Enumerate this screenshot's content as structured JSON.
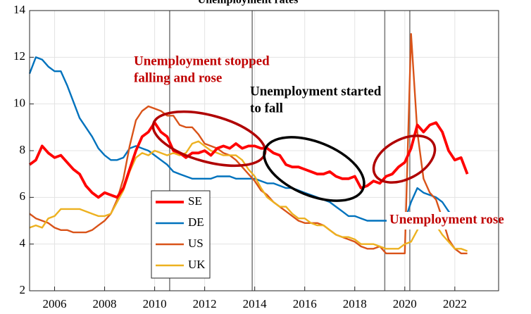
{
  "chart_data": {
    "type": "line",
    "title": "Unemployment rates",
    "x": [
      2005,
      2005.25,
      2005.5,
      2005.75,
      2006,
      2006.25,
      2006.5,
      2006.75,
      2007,
      2007.25,
      2007.5,
      2007.75,
      2008,
      2008.25,
      2008.5,
      2008.75,
      2009,
      2009.25,
      2009.5,
      2009.75,
      2010,
      2010.25,
      2010.5,
      2010.75,
      2011,
      2011.25,
      2011.5,
      2011.75,
      2012,
      2012.25,
      2012.5,
      2012.75,
      2013,
      2013.25,
      2013.5,
      2013.75,
      2014,
      2014.25,
      2014.5,
      2014.75,
      2015,
      2015.25,
      2015.5,
      2015.75,
      2016,
      2016.25,
      2016.5,
      2016.75,
      2017,
      2017.25,
      2017.5,
      2017.75,
      2018,
      2018.25,
      2018.5,
      2018.75,
      2019,
      2019.25,
      2019.5,
      2019.75,
      2020,
      2020.25,
      2020.5,
      2020.75,
      2021,
      2021.25,
      2021.5,
      2021.75,
      2022,
      2022.25,
      2022.5
    ],
    "series": [
      {
        "name": "DE",
        "color": "#0072bd",
        "values": [
          11.3,
          12.0,
          11.9,
          11.6,
          11.4,
          11.4,
          10.8,
          10.1,
          9.4,
          9.0,
          8.6,
          8.1,
          7.8,
          7.6,
          7.6,
          7.7,
          8.1,
          8.2,
          8.1,
          8.0,
          7.8,
          7.6,
          7.4,
          7.1,
          7.0,
          6.9,
          6.8,
          6.8,
          6.8,
          6.8,
          6.9,
          6.9,
          6.9,
          6.8,
          6.8,
          6.8,
          6.8,
          6.7,
          6.6,
          6.6,
          6.5,
          6.4,
          6.4,
          6.3,
          6.2,
          6.1,
          6.0,
          5.9,
          5.8,
          5.6,
          5.4,
          5.2,
          5.2,
          5.1,
          5.0,
          5.0,
          5.0,
          5.0,
          5.0,
          5.0,
          5.0,
          5.8,
          6.4,
          6.2,
          6.1,
          6.0,
          5.8,
          5.4,
          5.1,
          5.0,
          5.0
        ]
      },
      {
        "name": "US",
        "color": "#d95319",
        "values": [
          5.3,
          5.1,
          5.0,
          4.9,
          4.7,
          4.6,
          4.6,
          4.5,
          4.5,
          4.5,
          4.6,
          4.8,
          5.0,
          5.3,
          5.9,
          6.8,
          8.2,
          9.3,
          9.7,
          9.9,
          9.8,
          9.7,
          9.5,
          9.5,
          9.1,
          9.0,
          9.0,
          8.7,
          8.3,
          8.2,
          8.1,
          7.9,
          7.8,
          7.6,
          7.3,
          7.0,
          6.7,
          6.3,
          6.1,
          5.8,
          5.6,
          5.4,
          5.2,
          5.0,
          4.9,
          4.9,
          4.9,
          4.8,
          4.6,
          4.4,
          4.3,
          4.2,
          4.1,
          3.9,
          3.8,
          3.8,
          3.9,
          3.6,
          3.6,
          3.6,
          3.6,
          13.0,
          8.8,
          6.8,
          6.2,
          5.9,
          5.1,
          4.2,
          3.8,
          3.6,
          3.6
        ]
      },
      {
        "name": "UK",
        "color": "#edb120",
        "values": [
          4.7,
          4.8,
          4.7,
          5.1,
          5.2,
          5.5,
          5.5,
          5.5,
          5.5,
          5.4,
          5.3,
          5.2,
          5.2,
          5.3,
          5.8,
          6.3,
          7.1,
          7.7,
          7.9,
          7.8,
          8.0,
          7.9,
          7.8,
          7.9,
          7.8,
          7.9,
          8.3,
          8.4,
          8.2,
          8.0,
          7.9,
          7.8,
          7.8,
          7.8,
          7.6,
          7.2,
          6.9,
          6.4,
          6.0,
          5.8,
          5.6,
          5.6,
          5.3,
          5.1,
          5.1,
          4.9,
          4.8,
          4.8,
          4.6,
          4.4,
          4.3,
          4.3,
          4.2,
          4.0,
          4.0,
          4.0,
          3.9,
          3.8,
          3.8,
          3.8,
          4.0,
          4.1,
          4.6,
          5.1,
          5.0,
          4.8,
          4.4,
          4.1,
          3.8,
          3.8,
          3.7
        ]
      },
      {
        "name": "SE",
        "color": "#ff0000",
        "values": [
          7.4,
          7.6,
          8.2,
          7.9,
          7.7,
          7.8,
          7.5,
          7.2,
          7.0,
          6.5,
          6.2,
          6.0,
          6.2,
          6.1,
          6.0,
          6.4,
          7.2,
          8.0,
          8.6,
          8.8,
          9.2,
          8.8,
          8.6,
          8.0,
          7.9,
          7.7,
          7.9,
          7.9,
          8.0,
          7.8,
          8.1,
          8.2,
          8.1,
          8.3,
          8.1,
          8.2,
          8.2,
          8.1,
          8.1,
          7.9,
          7.8,
          7.4,
          7.3,
          7.3,
          7.2,
          7.1,
          7.0,
          7.0,
          7.1,
          6.9,
          6.8,
          6.8,
          6.9,
          6.4,
          6.5,
          6.7,
          6.6,
          6.9,
          7.0,
          7.3,
          7.5,
          8.1,
          9.1,
          8.8,
          9.1,
          9.2,
          8.8,
          8.0,
          7.6,
          7.7,
          7.0
        ]
      }
    ],
    "legend_order": [
      "SE",
      "DE",
      "US",
      "UK"
    ],
    "xlim": [
      2005,
      2023.75
    ],
    "ylim": [
      2,
      14
    ],
    "xticks": [
      2006,
      2008,
      2010,
      2012,
      2014,
      2016,
      2018,
      2020,
      2022
    ],
    "yticks": [
      2,
      4,
      6,
      8,
      10,
      12,
      14
    ],
    "grid": true,
    "vlines": [
      2010.6,
      2013.9,
      2019.2,
      2020.2
    ],
    "annotations": [
      {
        "lines": [
          "Unemployment stopped",
          "falling and rose"
        ],
        "color": "#c00000"
      },
      {
        "lines": [
          "Unemployment started",
          "to fall"
        ],
        "color": "#000000"
      },
      {
        "lines": [
          "Unemployment rose"
        ],
        "color": "#c00000"
      }
    ]
  }
}
